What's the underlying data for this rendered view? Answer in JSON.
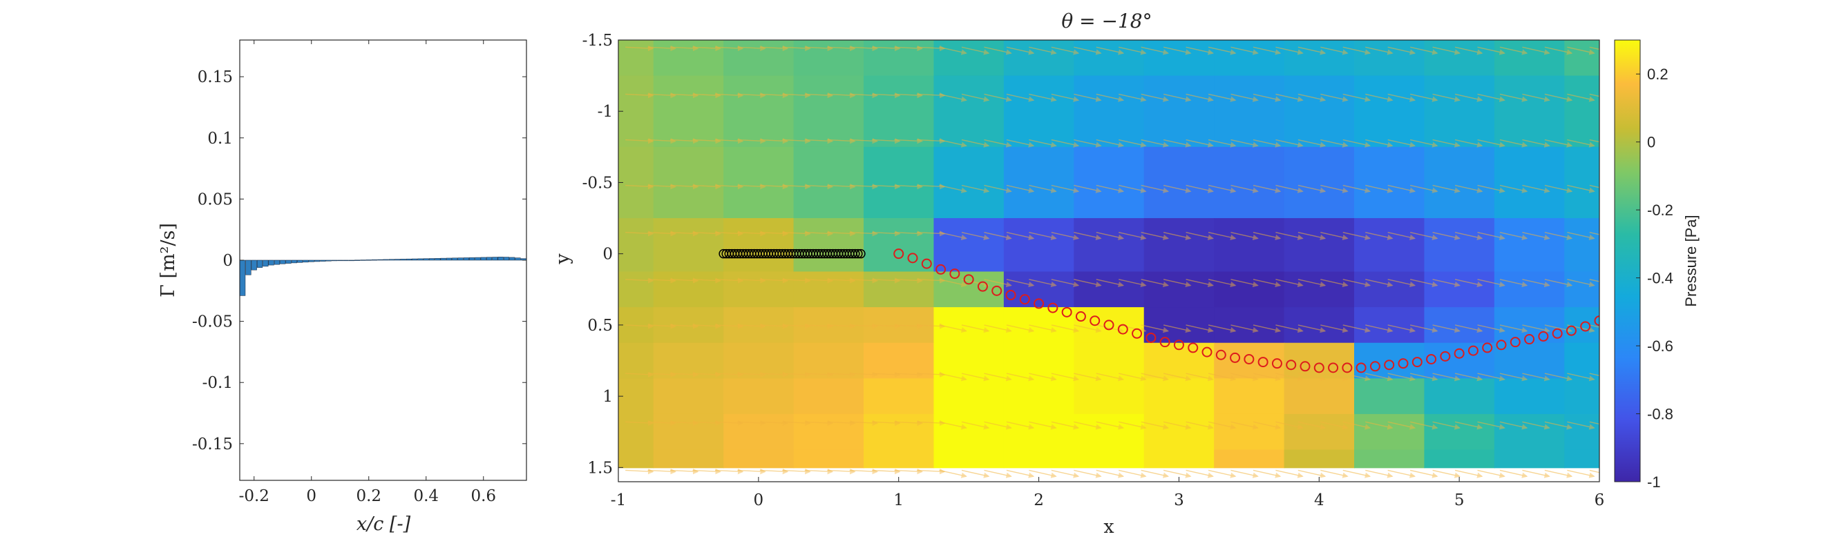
{
  "chart_data": [
    {
      "type": "bar",
      "xlabel": "x/c [-]",
      "ylabel": "Γ [m²/s]",
      "xlim": [
        -0.25,
        0.75
      ],
      "ylim": [
        -0.18,
        0.18
      ],
      "xticks": [
        "-0.2",
        "0",
        "0.2",
        "0.4",
        "0.6"
      ],
      "xtick_values": [
        -0.2,
        0,
        0.2,
        0.4,
        0.6
      ],
      "yticks": [
        "-0.15",
        "-0.1",
        "-0.05",
        "0",
        "0.05",
        "0.1",
        "0.15"
      ],
      "ytick_values": [
        -0.15,
        -0.1,
        -0.05,
        0,
        0.05,
        0.1,
        0.15
      ],
      "bar_color": "#2f7fc0",
      "x": [
        -0.24,
        -0.22,
        -0.2,
        -0.18,
        -0.16,
        -0.14,
        -0.12,
        -0.1,
        -0.08,
        -0.06,
        -0.04,
        -0.02,
        0,
        0.02,
        0.04,
        0.06,
        0.08,
        0.1,
        0.12,
        0.14,
        0.16,
        0.18,
        0.2,
        0.22,
        0.24,
        0.26,
        0.28,
        0.3,
        0.32,
        0.34,
        0.36,
        0.38,
        0.4,
        0.42,
        0.44,
        0.46,
        0.48,
        0.5,
        0.52,
        0.54,
        0.56,
        0.58,
        0.6,
        0.62,
        0.64,
        0.66,
        0.68,
        0.7,
        0.72,
        0.74
      ],
      "values": [
        -0.029,
        -0.012,
        -0.008,
        -0.006,
        -0.005,
        -0.004,
        -0.0035,
        -0.003,
        -0.0026,
        -0.0022,
        -0.0019,
        -0.0016,
        -0.0013,
        -0.0011,
        -0.0009,
        -0.0007,
        -0.0005,
        -0.0004,
        -0.0002,
        -0.0001,
        0.0001,
        0.0002,
        0.0003,
        0.0004,
        0.0005,
        0.0006,
        0.0007,
        0.0008,
        0.0009,
        0.001,
        0.0011,
        0.0012,
        0.0013,
        0.0014,
        0.0015,
        0.0016,
        0.0017,
        0.0018,
        0.0019,
        0.002,
        0.0021,
        0.0022,
        0.0023,
        0.0024,
        0.0025,
        0.0026,
        0.0025,
        0.0023,
        0.0019,
        0.0013
      ]
    },
    {
      "type": "heatmap",
      "title": "θ = −18°",
      "xlabel": "x",
      "ylabel": "y",
      "xlim": [
        -1,
        6
      ],
      "ylim": [
        -1.5,
        1.6
      ],
      "y_reversed": true,
      "xticks": [
        "-1",
        "0",
        "1",
        "2",
        "3",
        "4",
        "5",
        "6"
      ],
      "xtick_values": [
        -1,
        0,
        1,
        2,
        3,
        4,
        5,
        6
      ],
      "yticks": [
        "-1.5",
        "-1",
        "-0.5",
        "0",
        "0.5",
        "1",
        "1.5"
      ],
      "ytick_values": [
        -1.5,
        -1,
        -0.5,
        0,
        0.5,
        1,
        1.5
      ],
      "colorbar": {
        "label": "Pressure [Pa]",
        "ticks": [
          "0.2",
          "0",
          "-0.2",
          "-0.4",
          "-0.6",
          "-0.8",
          "-1"
        ],
        "tick_values": [
          0.2,
          0,
          -0.2,
          -0.4,
          -0.6,
          -0.8,
          -1
        ],
        "range": [
          -1,
          0.3
        ],
        "colormap": "parula"
      },
      "airfoil_points": {
        "x": [
          -0.25,
          -0.23,
          -0.21,
          -0.19,
          -0.17,
          -0.15,
          -0.13,
          -0.11,
          -0.09,
          -0.07,
          -0.05,
          -0.03,
          -0.01,
          0.01,
          0.03,
          0.05,
          0.07,
          0.09,
          0.11,
          0.13,
          0.15,
          0.17,
          0.19,
          0.21,
          0.23,
          0.25,
          0.27,
          0.29,
          0.31,
          0.33,
          0.35,
          0.37,
          0.39,
          0.41,
          0.43,
          0.45,
          0.47,
          0.49,
          0.51,
          0.53,
          0.55,
          0.57,
          0.59,
          0.61,
          0.63,
          0.65,
          0.67,
          0.69,
          0.71,
          0.73
        ],
        "y": 0,
        "color": "#000000"
      },
      "wake_points": {
        "x": [
          1.0,
          1.1,
          1.2,
          1.3,
          1.4,
          1.5,
          1.6,
          1.7,
          1.8,
          1.9,
          2.0,
          2.1,
          2.2,
          2.3,
          2.4,
          2.5,
          2.6,
          2.7,
          2.8,
          2.9,
          3.0,
          3.1,
          3.2,
          3.3,
          3.4,
          3.5,
          3.6,
          3.7,
          3.8,
          3.9,
          4.0,
          4.1,
          4.2,
          4.3,
          4.4,
          4.5,
          4.6,
          4.7,
          4.8,
          4.9,
          5.0,
          5.1,
          5.2,
          5.3,
          5.4,
          5.5,
          5.6,
          5.7,
          5.8,
          5.9,
          6.0
        ],
        "y": [
          0.0,
          0.03,
          0.07,
          0.11,
          0.14,
          0.18,
          0.23,
          0.26,
          0.29,
          0.32,
          0.35,
          0.38,
          0.41,
          0.44,
          0.47,
          0.5,
          0.53,
          0.56,
          0.59,
          0.62,
          0.64,
          0.66,
          0.69,
          0.71,
          0.73,
          0.74,
          0.76,
          0.77,
          0.78,
          0.79,
          0.8,
          0.8,
          0.8,
          0.8,
          0.79,
          0.78,
          0.77,
          0.76,
          0.74,
          0.72,
          0.7,
          0.68,
          0.66,
          0.64,
          0.62,
          0.6,
          0.58,
          0.56,
          0.54,
          0.51,
          0.47
        ],
        "color": "#dd1c1c"
      },
      "pressure_field": {
        "x": [
          -1,
          -0.5,
          0,
          0.5,
          1,
          1.5,
          2,
          2.5,
          3,
          3.5,
          4,
          4.5,
          5,
          5.5,
          6
        ],
        "y": [
          -1.5,
          -1.0,
          -0.5,
          0,
          0.25,
          0.5,
          0.75,
          1.0,
          1.25,
          1.5
        ],
        "z": [
          [
            -0.05,
            -0.1,
            -0.14,
            -0.17,
            -0.2,
            -0.3,
            -0.38,
            -0.42,
            -0.44,
            -0.44,
            -0.42,
            -0.4,
            -0.36,
            -0.3,
            -0.22
          ],
          [
            -0.04,
            -0.08,
            -0.12,
            -0.16,
            -0.22,
            -0.34,
            -0.44,
            -0.5,
            -0.52,
            -0.52,
            -0.5,
            -0.46,
            -0.42,
            -0.36,
            -0.3
          ],
          [
            -0.03,
            -0.06,
            -0.1,
            -0.16,
            -0.26,
            -0.42,
            -0.56,
            -0.64,
            -0.7,
            -0.7,
            -0.68,
            -0.62,
            -0.56,
            -0.48,
            -0.42
          ],
          [
            0.0,
            0.02,
            0.04,
            -0.06,
            -0.2,
            -0.78,
            -0.84,
            -0.9,
            -0.94,
            -0.95,
            -0.93,
            -0.86,
            -0.76,
            -0.64,
            -0.56
          ],
          [
            0.02,
            0.04,
            0.06,
            0.06,
            0.0,
            -0.08,
            -0.9,
            -0.96,
            -0.98,
            -0.99,
            -0.97,
            -0.9,
            -0.8,
            -0.66,
            -0.58
          ],
          [
            0.05,
            0.07,
            0.1,
            0.12,
            0.13,
            0.3,
            0.3,
            0.28,
            -0.98,
            -0.98,
            -0.95,
            -0.86,
            -0.72,
            -0.6,
            -0.5
          ],
          [
            0.07,
            0.1,
            0.12,
            0.14,
            0.17,
            0.3,
            0.3,
            0.28,
            0.24,
            0.16,
            0.12,
            -0.56,
            -0.6,
            -0.56,
            -0.46
          ],
          [
            0.08,
            0.12,
            0.14,
            0.16,
            0.2,
            0.3,
            0.3,
            0.28,
            0.26,
            0.2,
            0.14,
            -0.2,
            -0.36,
            -0.44,
            -0.42
          ],
          [
            0.08,
            0.12,
            0.16,
            0.18,
            0.22,
            0.3,
            0.3,
            0.3,
            0.26,
            0.2,
            0.1,
            -0.1,
            -0.26,
            -0.36,
            -0.4
          ],
          [
            0.08,
            0.12,
            0.16,
            0.18,
            0.22,
            0.3,
            0.3,
            0.3,
            0.26,
            0.18,
            0.06,
            -0.12,
            -0.28,
            -0.36,
            -0.4
          ]
        ]
      },
      "velocity_arrows": {
        "rows_y": [
          -1.45,
          -1.12,
          -0.8,
          -0.48,
          -0.15,
          0.18,
          0.5,
          0.84,
          1.18,
          1.52
        ],
        "color": "#f2b43c"
      }
    }
  ]
}
